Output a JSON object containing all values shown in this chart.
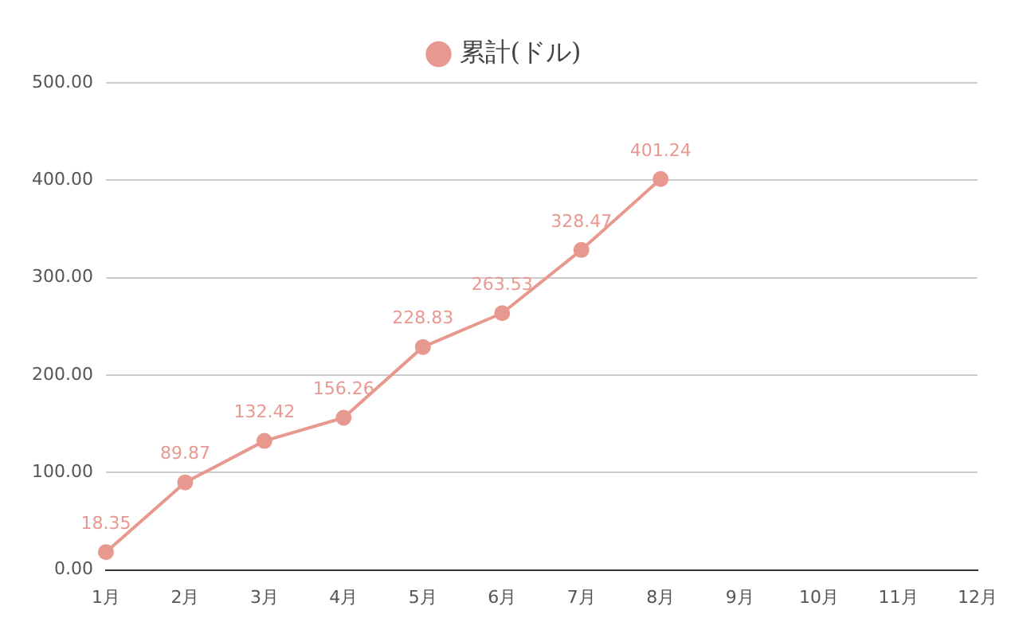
{
  "chart_data": {
    "type": "line",
    "categories": [
      "1月",
      "2月",
      "3月",
      "4月",
      "5月",
      "6月",
      "7月",
      "8月",
      "9月",
      "10月",
      "11月",
      "12月"
    ],
    "series": [
      {
        "name": "累計(ドル)",
        "color": "#e8998f",
        "values": [
          18.35,
          89.87,
          132.42,
          156.26,
          228.83,
          263.53,
          328.47,
          401.24,
          null,
          null,
          null,
          null
        ]
      }
    ],
    "ylim": [
      0,
      500
    ],
    "yticks": [
      {
        "value": 0,
        "label": "0.00"
      },
      {
        "value": 100,
        "label": "100.00"
      },
      {
        "value": 200,
        "label": "200.00"
      },
      {
        "value": 300,
        "label": "300.00"
      },
      {
        "value": 400,
        "label": "400.00"
      },
      {
        "value": 500,
        "label": "500.00"
      }
    ],
    "grid": "y",
    "legend": "top",
    "marker": "circle",
    "data_labels": true
  }
}
